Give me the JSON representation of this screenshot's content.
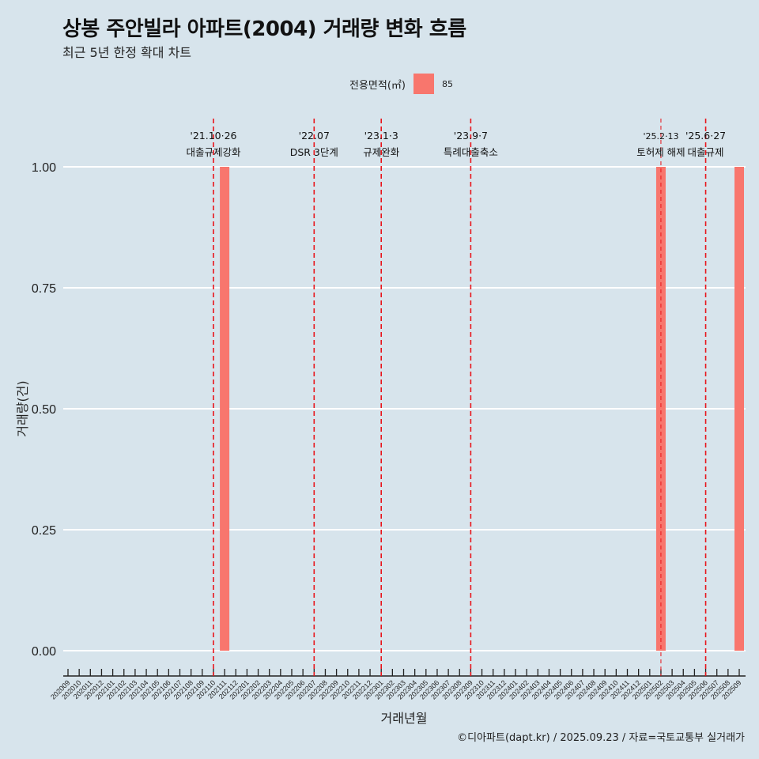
{
  "chart_data": {
    "type": "bar",
    "title": "상봉 주안빌라 아파트(2004) 거래량 변화 흐름",
    "subtitle": "최근 5년 한정 확대 차트",
    "xlabel": "거래년월",
    "ylabel": "거래량(건)",
    "ylim": [
      0,
      1
    ],
    "yticks": [
      "0.00",
      "0.25",
      "0.50",
      "0.75",
      "1.00"
    ],
    "ytick_values": [
      0,
      0.25,
      0.5,
      0.75,
      1
    ],
    "categories": [
      "202009",
      "202010",
      "202011",
      "202012",
      "202101",
      "202102",
      "202103",
      "202104",
      "202105",
      "202106",
      "202107",
      "202108",
      "202109",
      "202110",
      "202111",
      "202112",
      "202201",
      "202202",
      "202203",
      "202204",
      "202205",
      "202206",
      "202207",
      "202208",
      "202209",
      "202210",
      "202211",
      "202212",
      "202301",
      "202302",
      "202303",
      "202304",
      "202305",
      "202306",
      "202307",
      "202308",
      "202309",
      "202310",
      "202311",
      "202312",
      "202401",
      "202402",
      "202403",
      "202404",
      "202405",
      "202406",
      "202407",
      "202408",
      "202409",
      "202410",
      "202411",
      "202412",
      "202501",
      "202502",
      "202503",
      "202504",
      "202505",
      "202506",
      "202507",
      "202508",
      "202509"
    ],
    "series": [
      {
        "name": "85",
        "color": "#f8766d",
        "points": [
          {
            "x": "202111",
            "y": 1
          },
          {
            "x": "202502",
            "y": 1
          },
          {
            "x": "202509",
            "y": 1
          }
        ]
      }
    ],
    "legend": {
      "title": "전용면적(㎡)",
      "position": "top"
    },
    "annotations": [
      {
        "x": "202110",
        "date": "'21.10·26",
        "label": "대출규제강화"
      },
      {
        "x": "202207",
        "date": "'22.07",
        "label": "DSR 3단계"
      },
      {
        "x": "202301",
        "date": "'23.1·3",
        "label": "규제완화"
      },
      {
        "x": "202309",
        "date": "'23.9·7",
        "label": "특례대출축소"
      },
      {
        "x": "202502",
        "date": "'25.2·13",
        "label": "토허제 해제",
        "thin": true
      },
      {
        "x": "202506",
        "date": "'25.6·27",
        "label": "대출규제"
      }
    ],
    "caption": "©디아파트(dapt.kr) / 2025.09.23 / 자료=국토교통부 실거래가"
  }
}
